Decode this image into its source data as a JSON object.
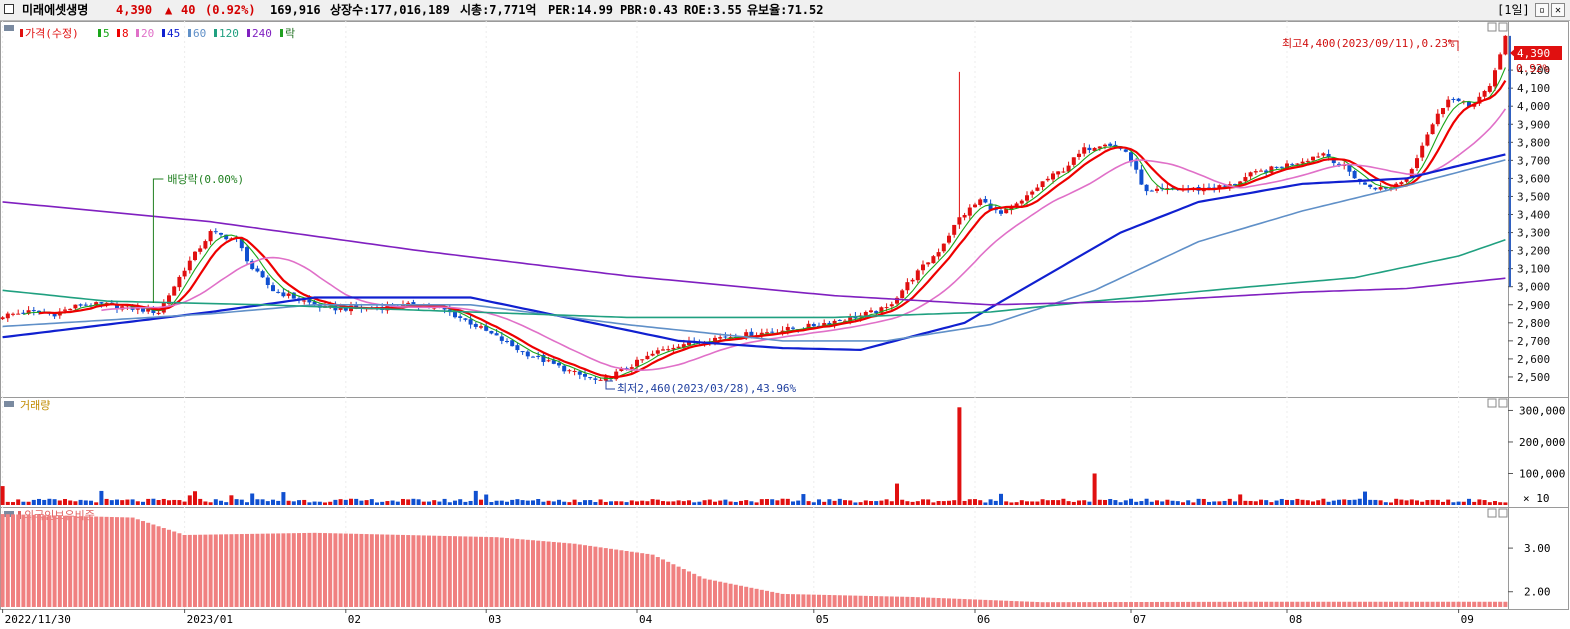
{
  "header": {
    "name": "미래에셋생명",
    "price": "4,390",
    "arrow": "▲",
    "change": "40",
    "change_pct": "(0.92%)",
    "volume": "169,916",
    "listed": "상장수:177,016,189",
    "mktcap": "시총:7,771억",
    "per": "PER:14.99",
    "pbr": "PBR:0.43",
    "roe": "ROE:3.55",
    "float": "유보율:71.52",
    "period": "[1일]",
    "up_color": "#d40000"
  },
  "legend": {
    "price": "가격(수정)",
    "ma": [
      {
        "label": "5",
        "color": "#1aa61a"
      },
      {
        "label": "8",
        "color": "#ee0000"
      },
      {
        "label": "20",
        "color": "#e070c8"
      },
      {
        "label": "45",
        "color": "#1020d0"
      },
      {
        "label": "60",
        "color": "#6090c8"
      },
      {
        "label": "120",
        "color": "#20a080"
      },
      {
        "label": "240",
        "color": "#8020c0"
      }
    ],
    "drop": "락",
    "volume": "거래량",
    "foreign": "외국인보유비중"
  },
  "annotations": {
    "high": "최고4,400(2023/09/11),0.23%",
    "low": "최저2,460(2023/03/28),43.96%",
    "dividend": "배당락(0.00%)",
    "last_price": "4,390",
    "last_pct": "0.92%"
  },
  "chart_data": {
    "type": "candlestick",
    "x_axis_labels": [
      "2022/11/30",
      "2023/01",
      "02",
      "03",
      "04",
      "05",
      "06",
      "07",
      "08",
      "09"
    ],
    "price_axis": {
      "ticks": [
        "4,200",
        "4,100",
        "4,000",
        "3,900",
        "3,800",
        "3,700",
        "3,600",
        "3,500",
        "3,400",
        "3,300",
        "3,200",
        "3,100",
        "3,000",
        "2,900",
        "2,800",
        "2,700",
        "2,600",
        "2,500"
      ],
      "range": [
        2400,
        4450
      ]
    },
    "volume_axis": {
      "ticks": [
        "300,000",
        "200,000",
        "100,000"
      ],
      "unit": "× 10",
      "range": [
        0,
        330000
      ]
    },
    "foreign_axis": {
      "ticks": [
        "3.00",
        "2.00"
      ],
      "range": [
        1.65,
        3.85
      ]
    },
    "price_anchors": [
      [
        0,
        2840
      ],
      [
        5,
        2860
      ],
      [
        10,
        2850
      ],
      [
        15,
        2900
      ],
      [
        20,
        2900
      ],
      [
        25,
        2880
      ],
      [
        30,
        2860
      ],
      [
        35,
        3100
      ],
      [
        40,
        3300
      ],
      [
        45,
        3260
      ],
      [
        48,
        3100
      ],
      [
        52,
        2980
      ],
      [
        55,
        2950
      ],
      [
        62,
        2880
      ],
      [
        70,
        2880
      ],
      [
        80,
        2900
      ],
      [
        85,
        2870
      ],
      [
        90,
        2800
      ],
      [
        95,
        2720
      ],
      [
        100,
        2640
      ],
      [
        105,
        2580
      ],
      [
        110,
        2520
      ],
      [
        115,
        2470
      ],
      [
        118,
        2520
      ],
      [
        122,
        2580
      ],
      [
        126,
        2640
      ],
      [
        130,
        2680
      ],
      [
        138,
        2720
      ],
      [
        145,
        2740
      ],
      [
        150,
        2760
      ],
      [
        155,
        2780
      ],
      [
        160,
        2810
      ],
      [
        165,
        2840
      ],
      [
        170,
        2880
      ],
      [
        175,
        3050
      ],
      [
        180,
        3200
      ],
      [
        184,
        3380
      ],
      [
        188,
        3480
      ],
      [
        192,
        3400
      ],
      [
        196,
        3470
      ],
      [
        200,
        3580
      ],
      [
        204,
        3650
      ],
      [
        208,
        3760
      ],
      [
        212,
        3800
      ],
      [
        216,
        3750
      ],
      [
        220,
        3520
      ],
      [
        225,
        3540
      ],
      [
        230,
        3540
      ],
      [
        236,
        3560
      ],
      [
        240,
        3620
      ],
      [
        245,
        3660
      ],
      [
        250,
        3700
      ],
      [
        254,
        3740
      ],
      [
        258,
        3660
      ],
      [
        262,
        3560
      ],
      [
        266,
        3540
      ],
      [
        270,
        3600
      ],
      [
        274,
        3850
      ],
      [
        278,
        4050
      ],
      [
        282,
        4000
      ],
      [
        286,
        4100
      ],
      [
        289,
        4390
      ]
    ],
    "highlight_candles": [
      {
        "index": 184,
        "high": 4190
      }
    ],
    "dividend_index": 29,
    "ma": [
      {
        "name": "5",
        "period": 5,
        "color": "#1aa61a"
      },
      {
        "name": "8",
        "period": 8,
        "color": "#ee0000"
      },
      {
        "name": "20",
        "period": 20,
        "color": "#e070c8"
      },
      {
        "name": "45",
        "points": [
          [
            0,
            2720
          ],
          [
            40,
            2860
          ],
          [
            60,
            2940
          ],
          [
            90,
            2940
          ],
          [
            110,
            2820
          ],
          [
            130,
            2700
          ],
          [
            150,
            2660
          ],
          [
            165,
            2650
          ],
          [
            185,
            2800
          ],
          [
            200,
            3050
          ],
          [
            215,
            3300
          ],
          [
            230,
            3470
          ],
          [
            250,
            3570
          ],
          [
            270,
            3600
          ],
          [
            290,
            3740
          ]
        ],
        "color": "#1020d0"
      },
      {
        "name": "60",
        "points": [
          [
            0,
            2780
          ],
          [
            40,
            2850
          ],
          [
            60,
            2900
          ],
          [
            90,
            2900
          ],
          [
            120,
            2790
          ],
          [
            150,
            2700
          ],
          [
            170,
            2700
          ],
          [
            190,
            2790
          ],
          [
            210,
            2980
          ],
          [
            230,
            3250
          ],
          [
            250,
            3420
          ],
          [
            270,
            3560
          ],
          [
            290,
            3710
          ]
        ],
        "color": "#6090c8"
      },
      {
        "name": "120",
        "points": [
          [
            0,
            2980
          ],
          [
            20,
            2920
          ],
          [
            50,
            2900
          ],
          [
            80,
            2870
          ],
          [
            120,
            2830
          ],
          [
            160,
            2830
          ],
          [
            190,
            2860
          ],
          [
            210,
            2920
          ],
          [
            240,
            3000
          ],
          [
            260,
            3050
          ],
          [
            280,
            3170
          ],
          [
            290,
            3270
          ]
        ],
        "color": "#20a080"
      },
      {
        "name": "240",
        "points": [
          [
            0,
            3470
          ],
          [
            40,
            3360
          ],
          [
            80,
            3200
          ],
          [
            120,
            3060
          ],
          [
            160,
            2950
          ],
          [
            190,
            2900
          ],
          [
            220,
            2920
          ],
          [
            250,
            2970
          ],
          [
            270,
            2990
          ],
          [
            290,
            3050
          ]
        ],
        "color": "#8020c0"
      }
    ],
    "volume_peaks": [
      {
        "index": 0,
        "value": 60000
      },
      {
        "index": 184,
        "value": 310000
      },
      {
        "index": 210,
        "value": 100000
      },
      {
        "index": 172,
        "value": 68000
      }
    ],
    "foreign_ratio": [
      [
        0,
        3.78
      ],
      [
        25,
        3.7
      ],
      [
        35,
        3.3
      ],
      [
        60,
        3.35
      ],
      [
        95,
        3.25
      ],
      [
        110,
        3.1
      ],
      [
        125,
        2.85
      ],
      [
        135,
        2.3
      ],
      [
        150,
        1.95
      ],
      [
        175,
        1.88
      ],
      [
        200,
        1.76
      ],
      [
        240,
        1.77
      ],
      [
        290,
        1.77
      ]
    ]
  },
  "colors": {
    "up": "#e01010",
    "down": "#1050d0",
    "bg": "#ffffff",
    "grid": "#d8d8d8"
  }
}
